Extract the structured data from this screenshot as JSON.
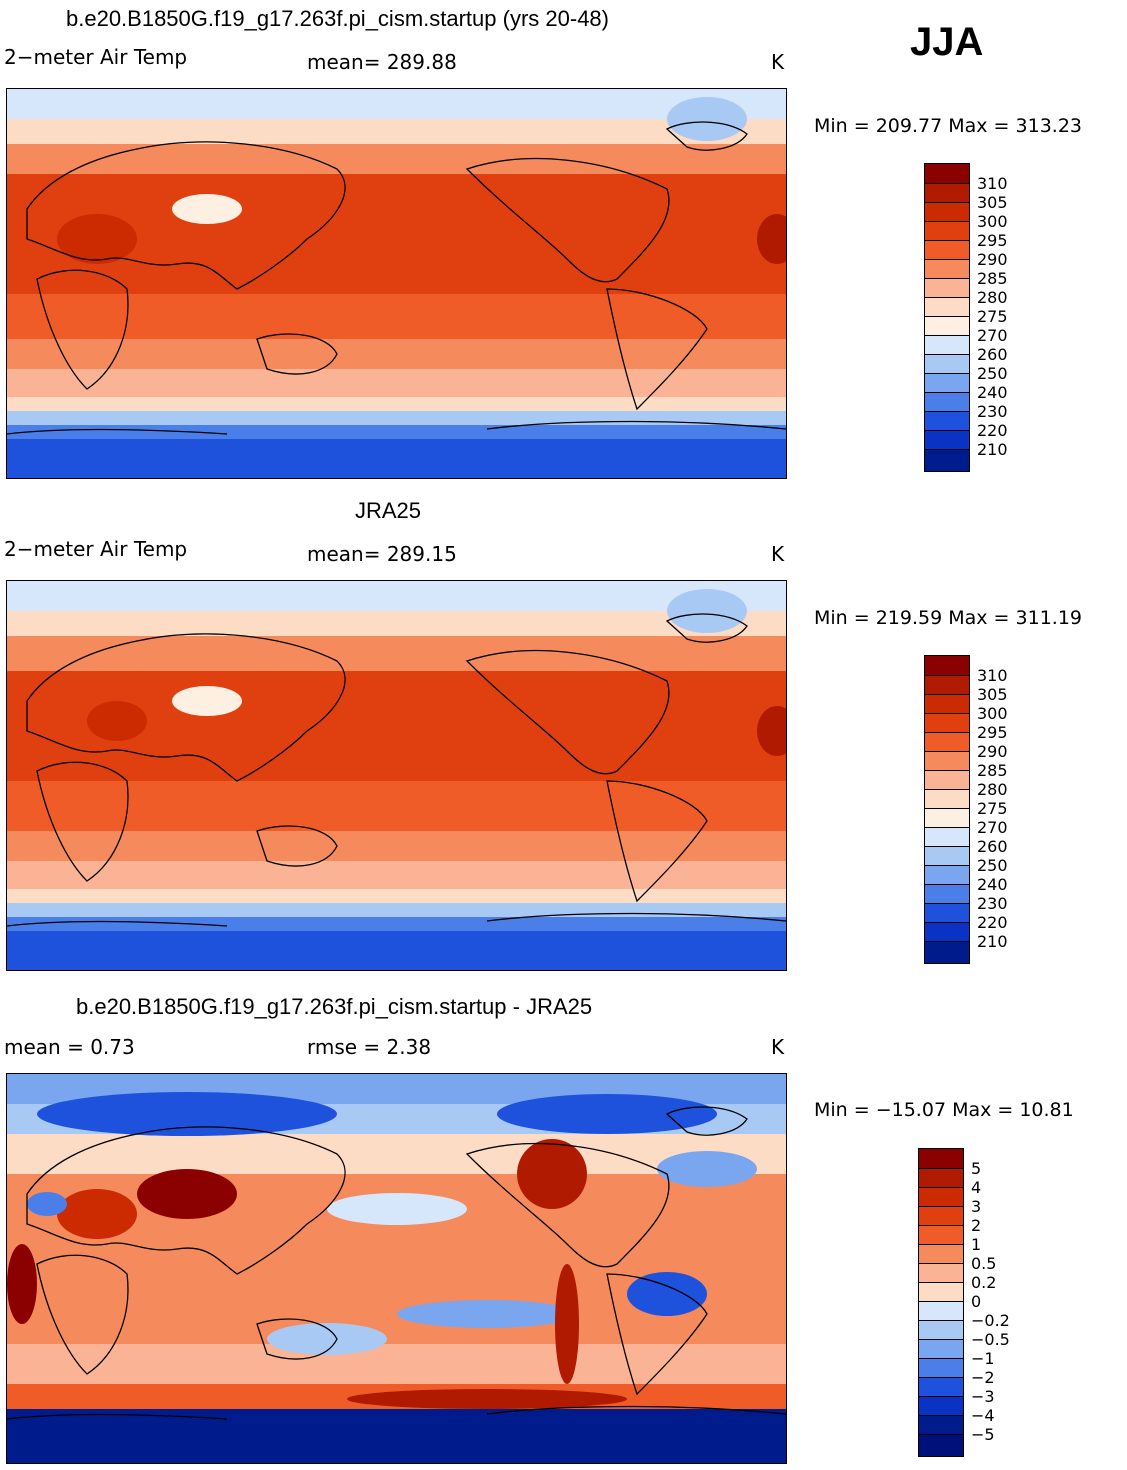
{
  "season": "JJA",
  "panels": [
    {
      "title": "b.e20.B1850G.f19_g17.263f.pi_cism.startup (yrs 20-48)",
      "left_label": "2−meter Air Temp",
      "center_label": "mean=  289.88",
      "units": "K",
      "minmax": "Min = 209.77  Max = 313.23",
      "colorbar_ticks": [
        "310",
        "305",
        "300",
        "295",
        "290",
        "285",
        "280",
        "275",
        "270",
        "260",
        "250",
        "240",
        "230",
        "220",
        "210"
      ]
    },
    {
      "title": "JRA25",
      "left_label": "2−meter Air Temp",
      "center_label": "mean=  289.15",
      "units": "K",
      "minmax": "Min = 219.59  Max = 311.19",
      "colorbar_ticks": [
        "310",
        "305",
        "300",
        "295",
        "290",
        "285",
        "280",
        "275",
        "270",
        "260",
        "250",
        "240",
        "230",
        "220",
        "210"
      ]
    },
    {
      "title": "b.e20.B1850G.f19_g17.263f.pi_cism.startup - JRA25",
      "left_label": "mean =     0.73",
      "center_label": "rmse =     2.38",
      "units": "K",
      "minmax": "Min = −15.07  Max =   10.81",
      "colorbar_ticks": [
        "5",
        "4",
        "3",
        "2",
        "1",
        "0.5",
        "0.2",
        "0",
        "−0.2",
        "−0.5",
        "−1",
        "−2",
        "−3",
        "−4",
        "−5"
      ]
    }
  ],
  "colors": {
    "temp_scale": [
      "#8b0000",
      "#b01a00",
      "#cc2a00",
      "#e04010",
      "#f05c28",
      "#f58a5c",
      "#fab394",
      "#fddcc6",
      "#fdf0e2",
      "#d6e7fb",
      "#a9c9f5",
      "#7aa6f0",
      "#4a7ee8",
      "#1f52dc",
      "#0a32c4",
      "#001c8c"
    ],
    "diff_scale": [
      "#8b0000",
      "#b01a00",
      "#cc2a00",
      "#e04010",
      "#f05c28",
      "#f58a5c",
      "#fab394",
      "#fddcc6",
      "#d6e7fb",
      "#a9c9f5",
      "#7aa6f0",
      "#4a7ee8",
      "#1f52dc",
      "#0a32c4",
      "#001c8c",
      "#00107a"
    ]
  }
}
